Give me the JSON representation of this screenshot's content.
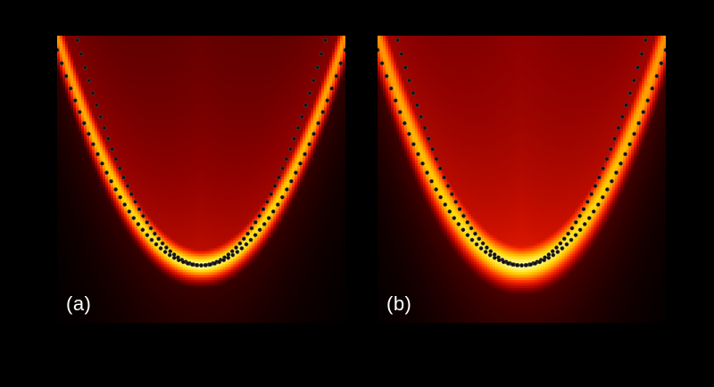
{
  "chart_data": [
    {
      "type": "heatmap",
      "panel_label": "(a)",
      "xlim": [
        -1,
        1
      ],
      "ylim": [
        0,
        1
      ],
      "colormap": [
        "#000000",
        "#3d0000",
        "#8b0000",
        "#cc1000",
        "#ff3000",
        "#ff8000",
        "#ffd000",
        "#ffff90"
      ],
      "band": {
        "center_y_at_x0": 0.2,
        "curvature": 0.8,
        "width": 0.055,
        "peak_intensity": 1.0,
        "background_min": 0.18,
        "background_max": 0.42
      },
      "series": [
        {
          "marker": "circle",
          "color": "#111111",
          "points_curve": {
            "a": 0.2,
            "b": 1.06,
            "x_range": [
              -0.86,
              0.86
            ]
          }
        },
        {
          "marker": "circle",
          "color": "#111111",
          "points_curve": {
            "a": 0.2,
            "b": 0.75,
            "x_range": [
              -1.0,
              1.0
            ]
          }
        }
      ],
      "grid": false
    },
    {
      "type": "heatmap",
      "panel_label": "(b)",
      "xlim": [
        -1,
        1
      ],
      "ylim": [
        0,
        1
      ],
      "colormap": [
        "#000000",
        "#3d0000",
        "#8b0000",
        "#cc1000",
        "#ff3000",
        "#ff8000",
        "#ffd000",
        "#ffff90"
      ],
      "band": {
        "center_y_at_x0": 0.2,
        "curvature": 0.8,
        "width": 0.075,
        "peak_intensity": 1.0,
        "background_min": 0.25,
        "background_max": 0.5
      },
      "series": [
        {
          "marker": "circle",
          "color": "#111111",
          "points_curve": {
            "a": 0.2,
            "b": 1.06,
            "x_range": [
              -0.86,
              0.86
            ]
          }
        },
        {
          "marker": "circle",
          "color": "#111111",
          "points_curve": {
            "a": 0.2,
            "b": 0.75,
            "x_range": [
              -1.0,
              1.0
            ]
          }
        }
      ],
      "grid": false
    }
  ]
}
